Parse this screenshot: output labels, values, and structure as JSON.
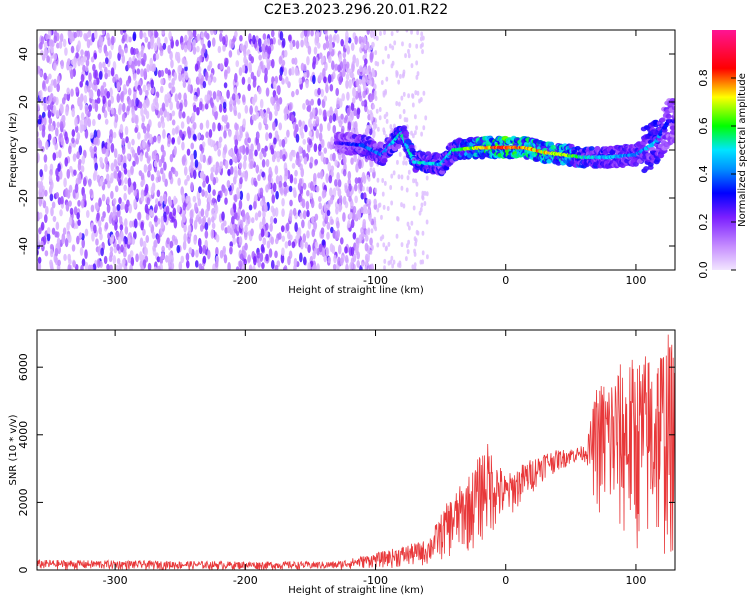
{
  "title": "C2E3.2023.296.20.01.R22",
  "chart_data": [
    {
      "type": "heatmap",
      "xlabel": "Height of straight line (km)",
      "ylabel": "Frequency (Hz)",
      "xlim": [
        -360,
        130
      ],
      "ylim": [
        -50,
        50
      ],
      "x_ticks": [
        -300,
        -200,
        -100,
        0,
        100
      ],
      "y_ticks": [
        -40,
        -20,
        0,
        20,
        40
      ],
      "colorbar": {
        "label": "Normalized spectral amplitude",
        "range": [
          0,
          1
        ],
        "ticks": [
          0.0,
          0.2,
          0.4,
          0.6,
          0.8
        ],
        "colormap": [
          "#f2e6ff",
          "#c58cff",
          "#7b1fff",
          "#0000ff",
          "#00e5ff",
          "#00ff00",
          "#ffff00",
          "#ff0000",
          "#ff1493"
        ]
      },
      "noise_region_x": [
        -360,
        -110
      ],
      "ridge": [
        {
          "x": -130,
          "y": 3,
          "amp": 0.3
        },
        {
          "x": -110,
          "y": 2,
          "amp": 0.45
        },
        {
          "x": -95,
          "y": -2,
          "amp": 0.45
        },
        {
          "x": -80,
          "y": 7,
          "amp": 0.55
        },
        {
          "x": -70,
          "y": -5,
          "amp": 0.55
        },
        {
          "x": -50,
          "y": -6,
          "amp": 0.5
        },
        {
          "x": -40,
          "y": 0,
          "amp": 0.55
        },
        {
          "x": -20,
          "y": 1,
          "amp": 0.8
        },
        {
          "x": 0,
          "y": 1,
          "amp": 0.9
        },
        {
          "x": 15,
          "y": 1,
          "amp": 0.85
        },
        {
          "x": 30,
          "y": -1,
          "amp": 0.8
        },
        {
          "x": 45,
          "y": -2,
          "amp": 0.75
        },
        {
          "x": 60,
          "y": -3,
          "amp": 0.55
        },
        {
          "x": 80,
          "y": -3,
          "amp": 0.5
        },
        {
          "x": 100,
          "y": -2,
          "amp": 0.45
        },
        {
          "x": 115,
          "y": 3,
          "amp": 0.5
        },
        {
          "x": 125,
          "y": 12,
          "amp": 0.35
        }
      ],
      "colors": {
        "background": "#ffffff",
        "axis": "#000000"
      }
    },
    {
      "type": "line",
      "xlabel": "Height of straight line (km)",
      "ylabel": "SNR (10 * v/v)",
      "xlim": [
        -360,
        130
      ],
      "ylim": [
        0,
        7100
      ],
      "x_ticks": [
        -300,
        -200,
        -100,
        0,
        100
      ],
      "y_ticks": [
        0,
        2000,
        4000,
        6000
      ],
      "line_color": "#e8383a",
      "envelope": [
        {
          "x": -360,
          "low": 0,
          "high": 300
        },
        {
          "x": -200,
          "low": 0,
          "high": 250
        },
        {
          "x": -130,
          "low": 0,
          "high": 250
        },
        {
          "x": -100,
          "low": 50,
          "high": 500
        },
        {
          "x": -80,
          "low": 50,
          "high": 700
        },
        {
          "x": -60,
          "low": 100,
          "high": 900
        },
        {
          "x": -45,
          "low": 300,
          "high": 2000
        },
        {
          "x": -25,
          "low": 500,
          "high": 3000
        },
        {
          "x": -15,
          "low": 800,
          "high": 3850
        },
        {
          "x": 0,
          "low": 1400,
          "high": 2800
        },
        {
          "x": 15,
          "low": 2000,
          "high": 3200
        },
        {
          "x": 30,
          "low": 2700,
          "high": 3500
        },
        {
          "x": 50,
          "low": 3100,
          "high": 3600
        },
        {
          "x": 62,
          "low": 3200,
          "high": 3700
        },
        {
          "x": 70,
          "low": 1500,
          "high": 5500
        },
        {
          "x": 90,
          "low": 500,
          "high": 6200
        },
        {
          "x": 110,
          "low": 200,
          "high": 6500
        },
        {
          "x": 125,
          "low": 100,
          "high": 7050
        },
        {
          "x": 130,
          "low": 100,
          "high": 6500
        }
      ]
    }
  ]
}
